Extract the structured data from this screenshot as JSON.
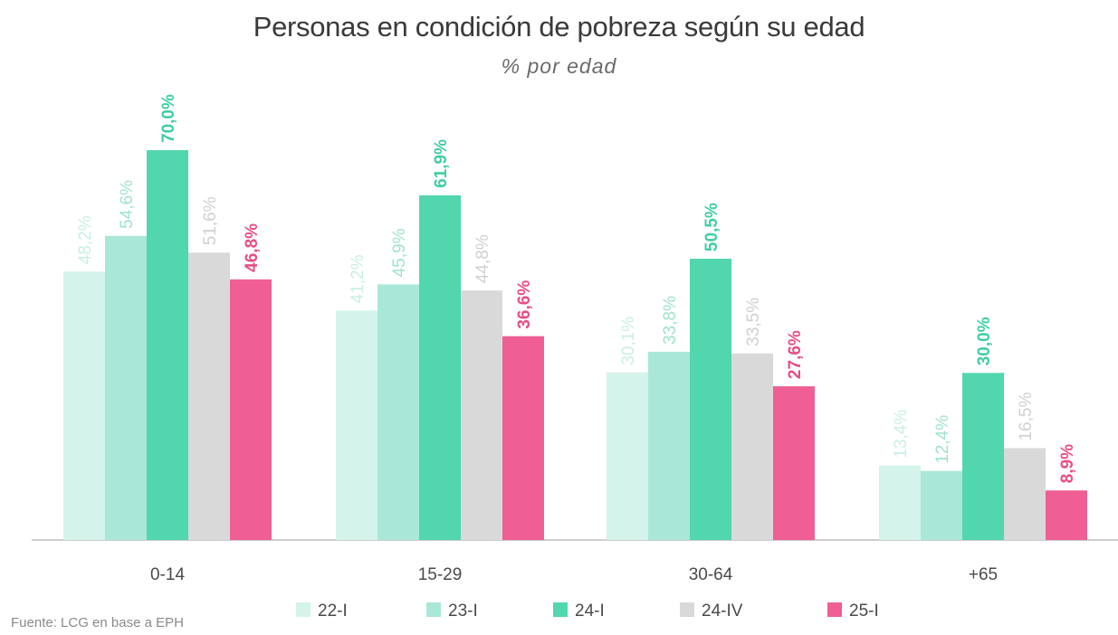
{
  "chart_data": {
    "type": "bar",
    "title": "Personas en condición de pobreza según su edad",
    "subtitle": "% por edad",
    "categories": [
      "0-14",
      "15-29",
      "30-64",
      "+65"
    ],
    "series": [
      {
        "name": "22-I",
        "color": "#d4f3ea",
        "label_color": "#c9efe3",
        "values": [
          48.2,
          41.2,
          30.1,
          13.4
        ],
        "labels": [
          "48,2%",
          "41,2%",
          "30,1%",
          "13,4%"
        ],
        "bold": false
      },
      {
        "name": "23-I",
        "color": "#a9e8d6",
        "label_color": "#9fe3cf",
        "values": [
          54.6,
          45.9,
          33.8,
          12.4
        ],
        "labels": [
          "54,6%",
          "45,9%",
          "33,8%",
          "12,4%"
        ],
        "bold": false
      },
      {
        "name": "24-I",
        "color": "#52d6ae",
        "label_color": "#3fcf9f",
        "values": [
          70.0,
          61.9,
          50.5,
          30.0
        ],
        "labels": [
          "70,0%",
          "61,9%",
          "50,5%",
          "30,0%"
        ],
        "bold": true
      },
      {
        "name": "24-IV",
        "color": "#d9d9d9",
        "label_color": "#d0d0d0",
        "values": [
          51.6,
          44.8,
          33.5,
          16.5
        ],
        "labels": [
          "51,6%",
          "44,8%",
          "33,5%",
          "16,5%"
        ],
        "bold": false
      },
      {
        "name": "25-I",
        "color": "#ef5f94",
        "label_color": "#e84d86",
        "values": [
          46.8,
          36.6,
          27.6,
          8.9
        ],
        "labels": [
          "46,8%",
          "36,6%",
          "27,6%",
          "8,9%"
        ],
        "bold": true
      }
    ],
    "ylim": [
      0,
      70
    ],
    "legend": "bottom",
    "grid": false
  },
  "source": "Fuente: LCG en base a EPH"
}
